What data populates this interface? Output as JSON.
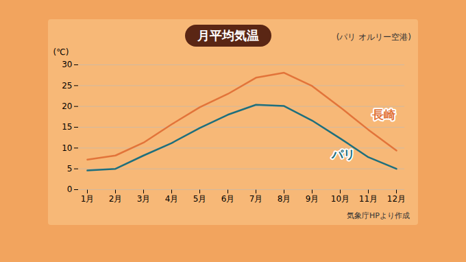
{
  "chart_data": {
    "type": "line",
    "title": "月平均気温",
    "subtitle": "(パリ オルリー空港)",
    "caption": "気象庁HPより作成",
    "y_label": "(℃)",
    "categories": [
      "1月",
      "2月",
      "3月",
      "4月",
      "5月",
      "6月",
      "7月",
      "8月",
      "9月",
      "10月",
      "11月",
      "12月"
    ],
    "series": [
      {
        "name": "長崎",
        "color": "#e2743a",
        "values": [
          7.2,
          8.2,
          11.3,
          15.7,
          19.8,
          23.0,
          26.9,
          28.1,
          24.9,
          19.8,
          14.4,
          9.4
        ]
      },
      {
        "name": "パリ",
        "color": "#1e6f7d",
        "values": [
          4.6,
          5.0,
          8.2,
          11.2,
          14.8,
          18.0,
          20.4,
          20.1,
          16.6,
          12.3,
          7.8,
          5.0
        ]
      }
    ],
    "ylim": [
      0,
      30
    ],
    "yticks": [
      0,
      5,
      10,
      15,
      20,
      25,
      30
    ],
    "grid": true
  }
}
